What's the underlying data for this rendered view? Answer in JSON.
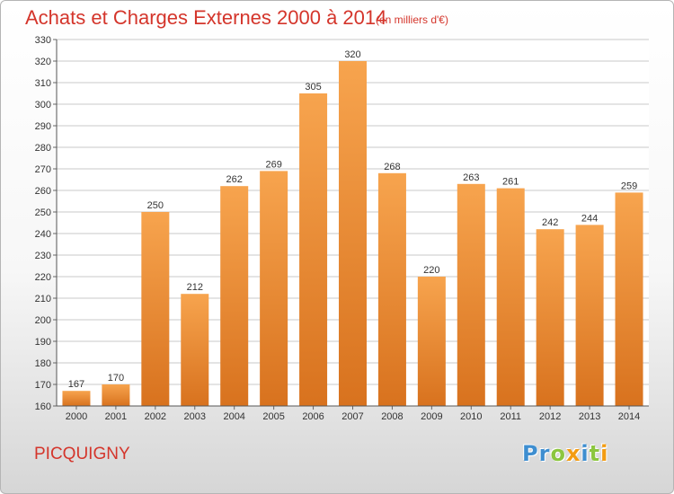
{
  "chart_data": {
    "type": "bar",
    "title": "Achats et Charges Externes 2000 à 2014",
    "unit_note": "(en milliers d'€)",
    "categories": [
      "2000",
      "2001",
      "2002",
      "2003",
      "2004",
      "2005",
      "2006",
      "2007",
      "2008",
      "2009",
      "2010",
      "2011",
      "2012",
      "2013",
      "2014"
    ],
    "values": [
      167,
      170,
      250,
      212,
      262,
      269,
      305,
      320,
      268,
      220,
      263,
      261,
      242,
      244,
      259
    ],
    "ylim": [
      160,
      330
    ],
    "yticks": [
      160,
      170,
      180,
      190,
      200,
      210,
      220,
      230,
      240,
      250,
      260,
      270,
      280,
      290,
      300,
      310,
      320,
      330
    ],
    "grid": true,
    "bar_color_top": "#f7a44e",
    "bar_color_bottom": "#d8721e"
  },
  "commune": "PICQUIGNY",
  "logo": {
    "text": "Proxiti",
    "letters": [
      {
        "ch": "P",
        "color": "#3e8ed0"
      },
      {
        "ch": "r",
        "color": "#3e8ed0"
      },
      {
        "ch": "o",
        "color": "#8cc63f"
      },
      {
        "ch": "x",
        "color": "#f39c12"
      },
      {
        "ch": "i",
        "color": "#3e8ed0"
      },
      {
        "ch": "t",
        "color": "#8cc63f"
      },
      {
        "ch": "i",
        "color": "#f39c12"
      }
    ]
  },
  "colors": {
    "title": "#d4352b",
    "grid": "#c8c8c8"
  }
}
